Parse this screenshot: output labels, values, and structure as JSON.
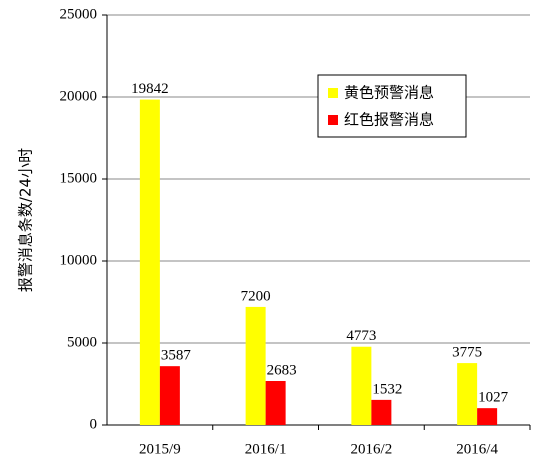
{
  "chart_data": {
    "type": "bar",
    "ylabel": "报警消息条数/24小时",
    "categories": [
      "2015/9",
      "2016/1",
      "2016/2",
      "2016/4"
    ],
    "series": [
      {
        "name": "黄色预警消息",
        "color": "#ffff00",
        "values": [
          19842,
          7200,
          4773,
          3775
        ]
      },
      {
        "name": "红色报警消息",
        "color": "#ff0000",
        "values": [
          3587,
          2683,
          1532,
          1027
        ]
      }
    ],
    "ylim": [
      0,
      25000
    ],
    "yticks": [
      0,
      5000,
      10000,
      15000,
      20000,
      25000
    ],
    "grid": true,
    "legend": "upper right"
  }
}
